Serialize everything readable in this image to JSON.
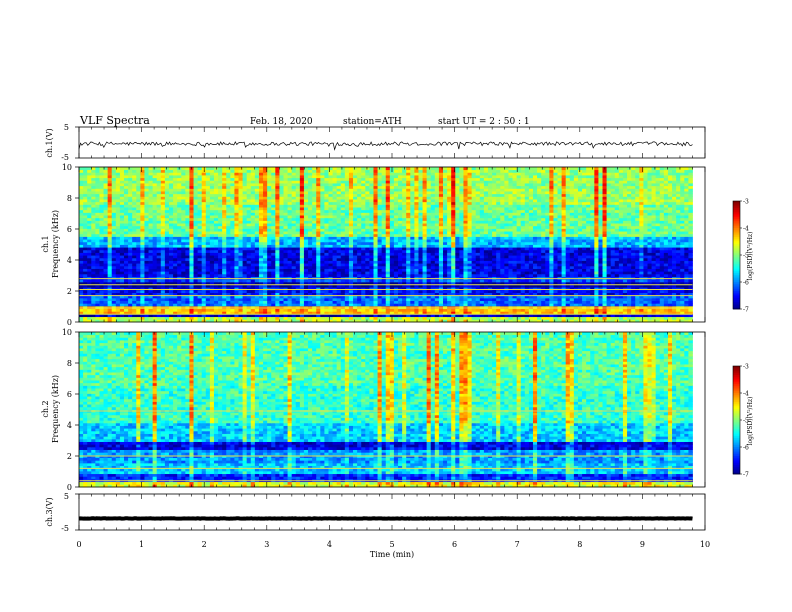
{
  "header": {
    "title": "VLF  Spectra",
    "date": "Feb. 18, 2020",
    "station": "station=ATH",
    "start_ut": "start  UT  =   2  : 50 : 1"
  },
  "chart_data": [
    {
      "type": "line",
      "name": "ch1-waveform",
      "ylabel": "ch.1(V)",
      "ylim": [
        -5,
        5
      ],
      "yticks": [
        "5",
        "-5"
      ],
      "xlim": [
        0,
        10
      ],
      "trace_x_end": 9.8,
      "trace_level": -0.4,
      "trace_amplitude": 0.6
    },
    {
      "type": "heatmap",
      "name": "ch1-spectrogram",
      "ylabel": "Frequency (kHz)",
      "ylabel_prefix": "ch.1",
      "ylim": [
        0,
        10
      ],
      "yticks": [
        "0",
        "2",
        "4",
        "6",
        "8",
        "10"
      ],
      "xlim": [
        0,
        10
      ],
      "data_x_end": 9.8,
      "value_range": [
        -7,
        -3
      ],
      "colorbar": {
        "ticks": [
          "-3",
          "-4",
          "-5",
          "-6",
          "-7"
        ],
        "label": "log(PSD)(V²/Hz)"
      },
      "bands": [
        {
          "f": [
            0.0,
            0.3
          ],
          "level": -4.8
        },
        {
          "f": [
            0.3,
            0.6
          ],
          "level": -6.8
        },
        {
          "f": [
            0.6,
            1.0
          ],
          "level": -4.3
        },
        {
          "f": [
            1.0,
            1.8
          ],
          "level": -6.1
        },
        {
          "f": [
            1.8,
            2.3
          ],
          "level": -6.5
        },
        {
          "f": [
            2.3,
            2.6
          ],
          "level": -6.9
        },
        {
          "f": [
            2.6,
            3.0
          ],
          "level": -6.3
        },
        {
          "f": [
            3.0,
            4.8
          ],
          "level": -6.6
        },
        {
          "f": [
            4.8,
            5.6
          ],
          "level": -5.8
        },
        {
          "f": [
            5.6,
            7.5
          ],
          "level": -5.1
        },
        {
          "f": [
            7.5,
            10.0
          ],
          "level": -4.9
        }
      ],
      "lines_khz": [
        0.5,
        0.9,
        1.7,
        2.1,
        2.4,
        2.8
      ]
    },
    {
      "type": "heatmap",
      "name": "ch2-spectrogram",
      "ylabel": "Frequency (kHz)",
      "ylabel_prefix": "ch.2",
      "ylim": [
        0,
        10
      ],
      "yticks": [
        "0",
        "2",
        "4",
        "6",
        "8",
        "10"
      ],
      "xlim": [
        0,
        10
      ],
      "data_x_end": 9.8,
      "value_range": [
        -7,
        -3
      ],
      "colorbar": {
        "ticks": [
          "-3",
          "-4",
          "-5",
          "-6",
          "-7"
        ],
        "label": "log(PSD)(V²/Hz)"
      },
      "bands": [
        {
          "f": [
            0.0,
            0.3
          ],
          "level": -4.6
        },
        {
          "f": [
            0.3,
            0.9
          ],
          "level": -6.4
        },
        {
          "f": [
            0.9,
            1.6
          ],
          "level": -5.7
        },
        {
          "f": [
            1.6,
            2.4
          ],
          "level": -5.9
        },
        {
          "f": [
            2.4,
            3.0
          ],
          "level": -6.6
        },
        {
          "f": [
            3.0,
            4.2
          ],
          "level": -5.7
        },
        {
          "f": [
            4.2,
            6.5
          ],
          "level": -5.3
        },
        {
          "f": [
            6.5,
            10.0
          ],
          "level": -5.2
        }
      ],
      "lines_khz": [
        0.4,
        1.2,
        2.0,
        4.9
      ]
    },
    {
      "type": "line",
      "name": "ch3-waveform",
      "ylabel": "ch.3(V)",
      "ylim": [
        -5,
        5
      ],
      "yticks": [
        "5",
        "-5"
      ],
      "xlim": [
        0,
        10
      ],
      "xticks": [
        "0",
        "1",
        "2",
        "3",
        "4",
        "5",
        "6",
        "7",
        "8",
        "9",
        "10"
      ],
      "xlabel": "Time  (min)",
      "trace_x_end": 9.8,
      "trace_level": -1.8,
      "trace_amplitude": 0.05
    }
  ]
}
